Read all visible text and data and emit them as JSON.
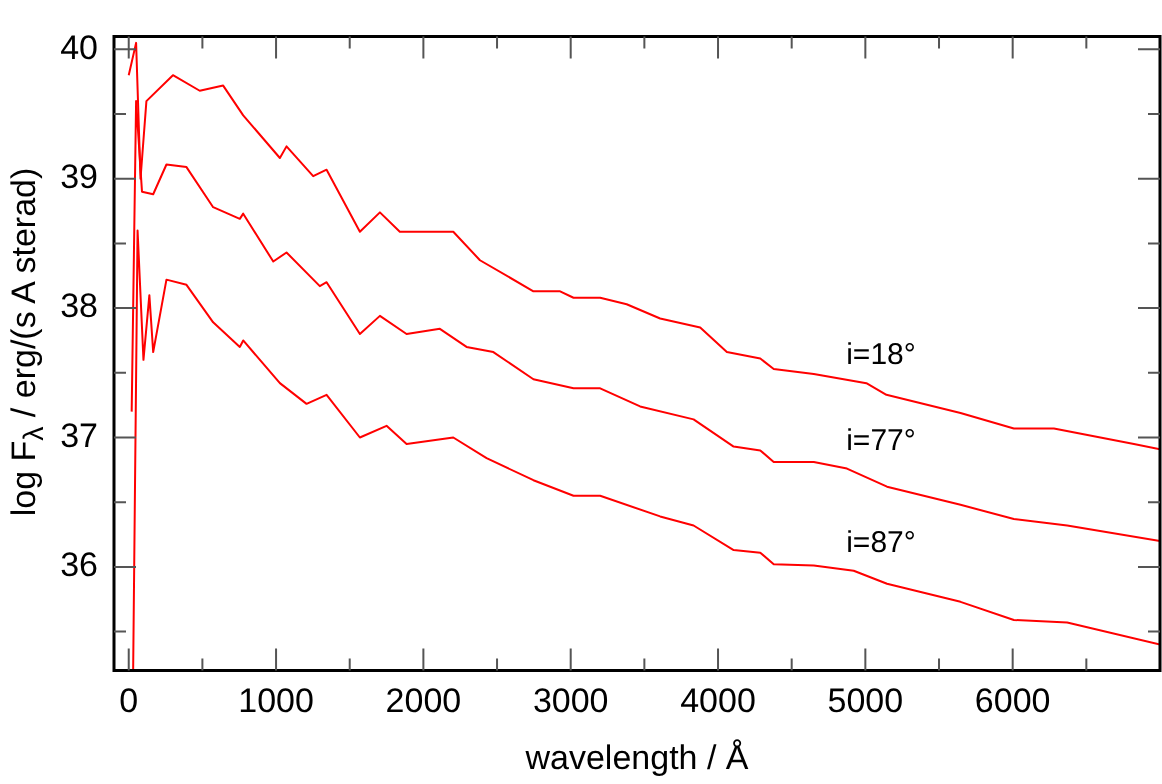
{
  "chart_data": {
    "type": "line",
    "xlabel": "wavelength / Å",
    "ylabel": "log F$_{λ}$ / erg/(s A sterad)",
    "xlim": [
      -100,
      7000
    ],
    "ylim": [
      35.2,
      40.1
    ],
    "xticks": [
      0,
      {
        "value": 500,
        "label": null
      },
      1000,
      {
        "value": 1500,
        "label": null
      },
      2000,
      {
        "value": 2500,
        "label": null
      },
      3000,
      {
        "value": 3500,
        "label": null
      },
      4000,
      {
        "value": 4500,
        "label": null
      },
      5000,
      {
        "value": 5500,
        "label": null
      },
      6000,
      {
        "value": 6500,
        "label": null
      }
    ],
    "yticks": [
      {
        "value": 35.5,
        "label": null
      },
      36,
      {
        "value": 36.5,
        "label": null
      },
      37,
      {
        "value": 37.5,
        "label": null
      },
      38,
      {
        "value": 38.5,
        "label": null
      },
      39,
      {
        "value": 39.5,
        "label": null
      },
      40
    ],
    "grid": false,
    "legend": false,
    "marker": "none",
    "line_style": "solid",
    "series": [
      {
        "name": "i=18°",
        "color": "#ff0000",
        "x": [
          0,
          50,
          80,
          120,
          300,
          482,
          641,
          777,
          1026,
          1071,
          1252,
          1343,
          1569,
          1705,
          1840,
          2203,
          2384,
          2747,
          2928,
          3019,
          3200,
          3380,
          3607,
          3879,
          4060,
          4287,
          4378,
          4650,
          5007,
          5143,
          5646,
          6008,
          6280,
          6823,
          7000
        ],
        "values": [
          39.8,
          40.05,
          39.0,
          39.6,
          39.8,
          39.68,
          39.72,
          39.49,
          39.16,
          39.25,
          39.02,
          39.07,
          38.59,
          38.74,
          38.59,
          38.59,
          38.37,
          38.13,
          38.13,
          38.08,
          38.08,
          38.03,
          37.92,
          37.85,
          37.66,
          37.61,
          37.53,
          37.49,
          37.42,
          37.33,
          37.19,
          37.07,
          37.07,
          36.95,
          36.91
        ]
      },
      {
        "name": "i=77°",
        "color": "#ff0000",
        "x": [
          20,
          50,
          90,
          166,
          256,
          392,
          573,
          754,
          777,
          981,
          1071,
          1297,
          1343,
          1569,
          1705,
          1886,
          2112,
          2293,
          2475,
          2747,
          3019,
          3200,
          3471,
          3834,
          4106,
          4287,
          4378,
          4650,
          4875,
          5147,
          5646,
          6008,
          6370,
          7000
        ],
        "values": [
          37.2,
          39.6,
          38.9,
          38.88,
          39.11,
          39.09,
          38.78,
          38.69,
          38.73,
          38.36,
          38.43,
          38.17,
          38.2,
          37.8,
          37.94,
          37.8,
          37.84,
          37.7,
          37.66,
          37.45,
          37.38,
          37.38,
          37.24,
          37.14,
          36.93,
          36.9,
          36.81,
          36.81,
          36.76,
          36.62,
          36.48,
          36.37,
          36.32,
          36.2
        ]
      },
      {
        "name": "i=87°",
        "color": "#ff0000",
        "x": [
          30,
          60,
          100,
          140,
          166,
          256,
          392,
          573,
          754,
          777,
          1026,
          1207,
          1343,
          1569,
          1750,
          1886,
          2203,
          2429,
          2747,
          3019,
          3200,
          3607,
          3834,
          4106,
          4287,
          4378,
          4650,
          4921,
          5147,
          5646,
          6008,
          6370,
          7000
        ],
        "values": [
          35.2,
          38.6,
          37.6,
          38.1,
          37.66,
          38.22,
          38.18,
          37.89,
          37.7,
          37.75,
          37.42,
          37.26,
          37.33,
          37.0,
          37.09,
          36.95,
          37.0,
          36.84,
          36.67,
          36.55,
          36.55,
          36.39,
          36.32,
          36.13,
          36.11,
          36.02,
          36.01,
          35.97,
          35.87,
          35.73,
          35.59,
          35.57,
          35.4
        ]
      }
    ]
  }
}
